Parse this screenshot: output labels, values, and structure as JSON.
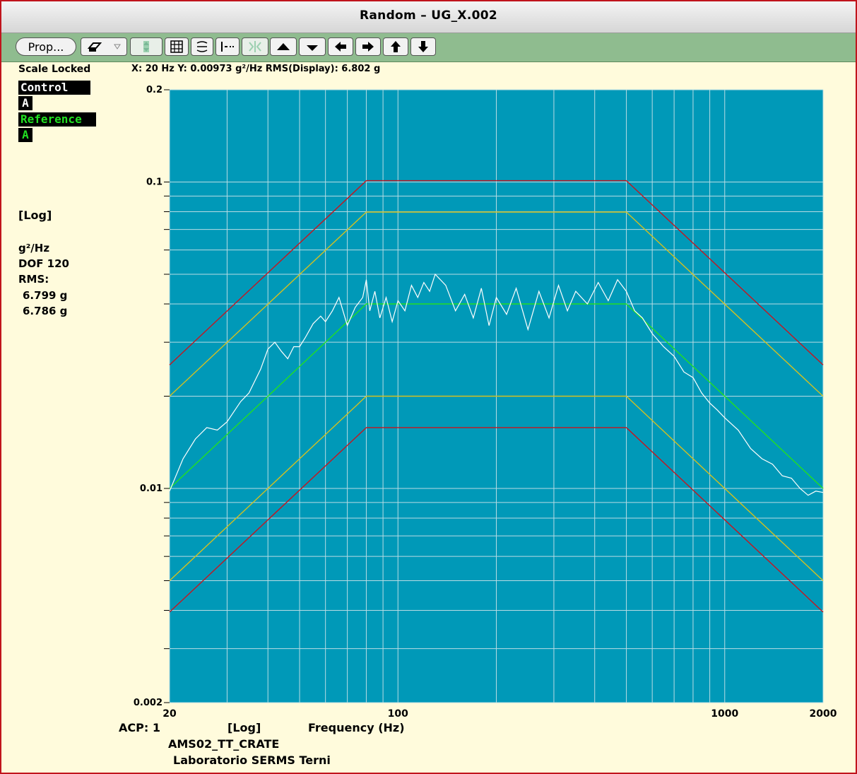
{
  "window": {
    "title": "Random – UG_X.002"
  },
  "toolbar": {
    "prop_label": "Prop...",
    "buttons": [
      "printer-icon",
      "dropdown-arrow-icon",
      "autoscale-icon",
      "grid-icon",
      "cursor-icon",
      "marker-icon",
      "expand-icon",
      "up-triangle-icon",
      "down-triangle-icon",
      "left-arrow-icon",
      "right-arrow-icon",
      "up-arrow-icon",
      "down-arrow-icon"
    ]
  },
  "left": {
    "scale_locked": "Scale Locked",
    "control_label": "Control",
    "control_channel": "A",
    "reference_label": "Reference",
    "reference_channel": "A",
    "scale_type": "[Log]",
    "units": "g²/Hz",
    "dof": "DOF 120",
    "rms_label": "RMS:",
    "rms_control": "6.799 g",
    "rms_reference": "6.786 g"
  },
  "readout": {
    "text": "X:  20 Hz  Y: 0.00973 g²/Hz  RMS(Display): 6.802 g"
  },
  "footer": {
    "acp": "ACP:  1",
    "log": "[Log]",
    "xlabel": "Frequency (Hz)",
    "line2": "AMS02_TT_CRATE",
    "line3": "Laboratorio SERMS Terni"
  },
  "colors": {
    "plot_bg": "#0099b8",
    "grid": "#b8dce4",
    "abort_line": "#c8141e",
    "alarm_line": "#d4c020",
    "reference_line": "#22e022",
    "control_line": "#ffffff",
    "control_tag_bg": "#000000",
    "reference_tag_bg": "#000000",
    "reference_tag_fg": "#22e022"
  },
  "chart_data": {
    "type": "line",
    "x_scale": "log",
    "y_scale": "log",
    "xlim": [
      20,
      2000
    ],
    "ylim": [
      0.002,
      0.2
    ],
    "x_tick_labels": [
      "20",
      "100",
      "1000",
      "2000"
    ],
    "y_tick_labels": [
      "0.2",
      "0.1",
      "0.01",
      "0.002"
    ],
    "xlabel": "Frequency (Hz)",
    "series": [
      {
        "name": "Reference",
        "x": [
          20,
          80,
          500,
          2000
        ],
        "y": [
          0.01,
          0.04,
          0.04,
          0.01
        ]
      },
      {
        "x": [
          20,
          80,
          500,
          2000
        ],
        "y": [
          0.0253,
          0.101,
          0.101,
          0.0253
        ]
      },
      {
        "x": [
          20,
          80,
          500,
          2000
        ],
        "y": [
          0.02,
          0.0798,
          0.0798,
          0.02
        ]
      },
      {
        "x": [
          20,
          80,
          500,
          2000
        ],
        "y": [
          0.005,
          0.02,
          0.02,
          0.005
        ]
      },
      {
        "x": [
          20,
          80,
          500,
          2000
        ],
        "y": [
          0.00395,
          0.0158,
          0.0158,
          0.00395
        ]
      },
      {
        "name": "Control",
        "x": [
          20,
          22,
          24,
          26,
          28,
          30,
          33,
          35,
          38,
          40,
          42,
          44,
          46,
          48,
          50,
          52,
          55,
          58,
          60,
          63,
          66,
          70,
          74,
          78,
          80,
          82,
          85,
          88,
          92,
          96,
          100,
          105,
          110,
          115,
          120,
          125,
          130,
          140,
          150,
          160,
          170,
          180,
          190,
          200,
          215,
          230,
          250,
          270,
          290,
          310,
          330,
          350,
          380,
          410,
          440,
          470,
          500,
          530,
          560,
          600,
          650,
          700,
          750,
          800,
          850,
          900,
          950,
          1000,
          1100,
          1200,
          1300,
          1400,
          1500,
          1600,
          1700,
          1800,
          1900,
          2000
        ],
        "y": [
          0.0098,
          0.0125,
          0.0145,
          0.0158,
          0.0155,
          0.0165,
          0.0192,
          0.0205,
          0.0245,
          0.0285,
          0.03,
          0.028,
          0.0265,
          0.029,
          0.029,
          0.031,
          0.0345,
          0.0365,
          0.035,
          0.038,
          0.042,
          0.034,
          0.039,
          0.042,
          0.048,
          0.038,
          0.044,
          0.036,
          0.042,
          0.035,
          0.041,
          0.038,
          0.046,
          0.042,
          0.047,
          0.044,
          0.05,
          0.046,
          0.038,
          0.043,
          0.036,
          0.045,
          0.034,
          0.042,
          0.037,
          0.045,
          0.033,
          0.044,
          0.036,
          0.046,
          0.038,
          0.044,
          0.04,
          0.047,
          0.041,
          0.048,
          0.044,
          0.038,
          0.036,
          0.032,
          0.029,
          0.027,
          0.024,
          0.023,
          0.0205,
          0.019,
          0.018,
          0.017,
          0.0155,
          0.0135,
          0.0125,
          0.012,
          0.011,
          0.0108,
          0.01,
          0.0095,
          0.0098,
          0.0097
        ]
      }
    ]
  }
}
